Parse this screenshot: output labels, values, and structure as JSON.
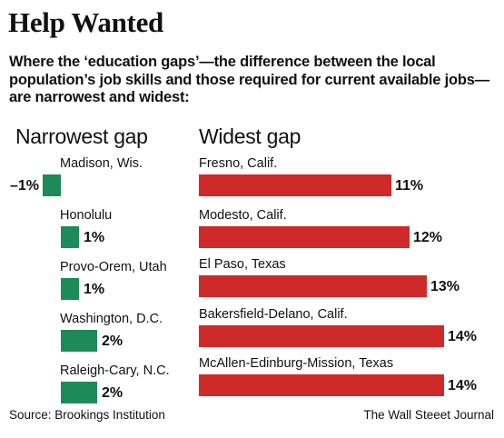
{
  "header": {
    "title": "Help Wanted",
    "subtitle": "Where the ‘education gaps’—the difference between the local population’s job skills and those required for current available jobs—are narrowest and widest:"
  },
  "footer": {
    "source": "Source: Brookings Institution",
    "credit": "The Wall Steeet Journal"
  },
  "colors": {
    "narrow": "#1d8a5a",
    "wide": "#cf2a2a"
  },
  "chart_data": [
    {
      "type": "bar",
      "orientation": "horizontal",
      "title": "Narrowest gap",
      "categories": [
        "Madison, Wis.",
        "Honolulu",
        "Provo-Orem, Utah",
        "Washington, D.C.",
        "Raleigh-Cary, N.C."
      ],
      "values": [
        -1,
        1,
        1,
        2,
        2
      ],
      "labels": [
        "–1%",
        "1%",
        "1%",
        "2%",
        "2%"
      ],
      "unit": "%",
      "color": "#1d8a5a"
    },
    {
      "type": "bar",
      "orientation": "horizontal",
      "title": "Widest gap",
      "categories": [
        "Fresno, Calif.",
        "Modesto, Calif.",
        "El Paso, Texas",
        "Bakersfield-Delano, Calif.",
        "McAllen-Edinburg-Mission, Texas"
      ],
      "values": [
        11,
        12,
        13,
        14,
        14
      ],
      "labels": [
        "11%",
        "12%",
        "13%",
        "14%",
        "14%"
      ],
      "unit": "%",
      "color": "#cf2a2a"
    }
  ]
}
